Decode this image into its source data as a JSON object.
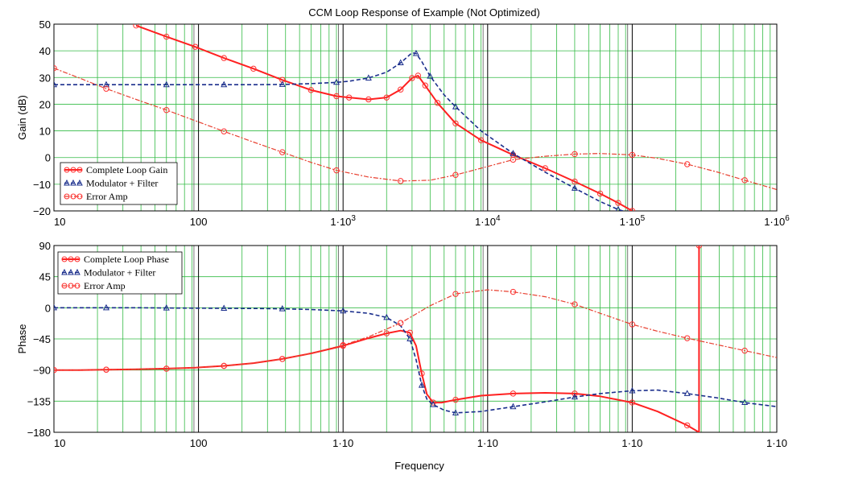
{
  "title": "CCM Loop Response of Example (Not Optimized)",
  "xlabel": "Frequency",
  "colors": {
    "complete": "#ff2020",
    "modulator": "#1a2e8c",
    "error": "#e84030",
    "grid": "#33bb44",
    "decade": "#000000",
    "marker": "#ff3030",
    "modmarker": "#1a2e8c"
  },
  "chart_data": [
    {
      "type": "line",
      "ylabel": "Gain (dB)",
      "xscale": "log",
      "xlim": [
        10,
        1000000
      ],
      "ylim": [
        -20,
        50
      ],
      "yticks": [
        50,
        40,
        30,
        20,
        10,
        0,
        -10,
        -20
      ],
      "ytick_labels": [
        "50",
        "40",
        "30",
        "20",
        "10",
        "0",
        "−10",
        "−20"
      ],
      "xtick_labels": [
        {
          "x": 10,
          "label": "10"
        },
        {
          "x": 100,
          "label": "100"
        },
        {
          "x": 1000,
          "label": "1·10^3"
        },
        {
          "x": 10000,
          "label": "1·10^4"
        },
        {
          "x": 100000,
          "label": "1·10^5"
        },
        {
          "x": 1000000,
          "label": "1·10^6"
        }
      ],
      "legend": "bottom-left",
      "series": [
        {
          "name": "Complete Loop Gain",
          "marker": "circle",
          "style": "solid",
          "x": [
            37,
            60,
            95,
            150,
            240,
            380,
            600,
            900,
            1100,
            1500,
            2000,
            2500,
            3000,
            3300,
            3700,
            4500,
            6000,
            9000,
            15000,
            25000,
            40000,
            60000,
            80000,
            100000
          ],
          "y": [
            49.5,
            45.3,
            41.5,
            37.3,
            33.3,
            29.1,
            25.3,
            23.0,
            22.5,
            21.8,
            22.5,
            25.5,
            29.8,
            30.7,
            27.0,
            20.5,
            12.8,
            6.5,
            1.0,
            -4.0,
            -9.0,
            -13.5,
            -17.0,
            -20.0
          ]
        },
        {
          "name": "Modulator + Filter",
          "marker": "triangle",
          "style": "dashed",
          "x": [
            10,
            15,
            23,
            37,
            60,
            95,
            150,
            240,
            380,
            600,
            900,
            1100,
            1500,
            2000,
            2500,
            3000,
            3200,
            3500,
            4000,
            5000,
            6000,
            9000,
            15000,
            25000,
            40000,
            60000,
            80000,
            100000
          ],
          "y": [
            27.3,
            27.3,
            27.3,
            27.3,
            27.3,
            27.3,
            27.3,
            27.3,
            27.4,
            27.7,
            28.2,
            28.6,
            29.8,
            32.0,
            35.5,
            39.3,
            39.0,
            36.0,
            30.5,
            23.5,
            19.0,
            10.0,
            1.5,
            -5.5,
            -11.5,
            -16.5,
            -19.5,
            -21.0
          ]
        },
        {
          "name": "Error Amp",
          "marker": "circle",
          "style": "dashdot",
          "x": [
            10,
            15,
            23,
            37,
            60,
            95,
            150,
            240,
            380,
            600,
            900,
            1500,
            2500,
            4000,
            6000,
            9000,
            15000,
            25000,
            40000,
            60000,
            100000,
            150000,
            240000,
            380000,
            600000,
            1000000
          ],
          "y": [
            33.5,
            29.8,
            25.8,
            21.8,
            17.8,
            13.8,
            9.8,
            5.8,
            2.0,
            -1.8,
            -4.8,
            -7.3,
            -8.8,
            -8.5,
            -6.5,
            -4.0,
            -0.8,
            0.5,
            1.3,
            1.5,
            1.0,
            -0.3,
            -2.5,
            -5.3,
            -8.5,
            -12.0
          ]
        }
      ]
    },
    {
      "type": "line",
      "ylabel": "Phase",
      "xscale": "log",
      "xlim": [
        10,
        1000000
      ],
      "ylim": [
        -180,
        90
      ],
      "yticks": [
        90,
        45,
        0,
        -45,
        -90,
        -135,
        -180
      ],
      "ytick_labels": [
        "90",
        "45",
        "0",
        "−45",
        "−90",
        "−135",
        "−180"
      ],
      "xtick_labels": [
        {
          "x": 10,
          "label": "10"
        },
        {
          "x": 100,
          "label": "100"
        },
        {
          "x": 1000,
          "label": "1·10"
        },
        {
          "x": 10000,
          "label": "1·10"
        },
        {
          "x": 100000,
          "label": "1·10"
        },
        {
          "x": 1000000,
          "label": "1·10"
        }
      ],
      "legend": "top-left",
      "series": [
        {
          "name": "Complete Loop Phase",
          "marker": "circle",
          "style": "solid",
          "x": [
            10,
            15,
            23,
            37,
            60,
            95,
            150,
            240,
            380,
            600,
            1000,
            1500,
            2000,
            2500,
            2900,
            3200,
            3500,
            3800,
            4200,
            4800,
            6000,
            9000,
            15000,
            25000,
            40000,
            60000,
            100000,
            150000,
            240000,
            290000,
            290000,
            292000
          ],
          "y": [
            -90,
            -90,
            -89.5,
            -89,
            -88,
            -86.5,
            -84,
            -80,
            -74,
            -66,
            -55,
            -44,
            -37,
            -33,
            -36,
            -55,
            -95,
            -125,
            -137,
            -137,
            -133,
            -127,
            -124,
            -123,
            -124,
            -128,
            -137,
            -150,
            -170,
            -180,
            90,
            90
          ]
        },
        {
          "name": "Modulator + Filter",
          "marker": "triangle",
          "style": "dashed",
          "x": [
            10,
            15,
            23,
            37,
            60,
            95,
            150,
            240,
            380,
            600,
            1000,
            1500,
            2000,
            2500,
            2900,
            3200,
            3500,
            3800,
            4200,
            5000,
            6000,
            9000,
            15000,
            25000,
            40000,
            60000,
            100000,
            150000,
            240000,
            380000,
            600000,
            1000000
          ],
          "y": [
            0,
            0,
            0,
            0,
            -0.3,
            -0.5,
            -0.8,
            -1,
            -1.5,
            -2.5,
            -4.5,
            -8,
            -14,
            -26,
            -45,
            -75,
            -112,
            -132,
            -140,
            -148,
            -152,
            -150,
            -143,
            -136,
            -129,
            -124,
            -120,
            -119,
            -124,
            -130,
            -137,
            -143
          ]
        },
        {
          "name": "Error Amp",
          "marker": "circle",
          "style": "dashdot",
          "x": [
            10,
            15,
            23,
            37,
            60,
            95,
            150,
            240,
            380,
            600,
            1000,
            1500,
            2500,
            4000,
            6000,
            10000,
            15000,
            25000,
            40000,
            60000,
            100000,
            150000,
            240000,
            380000,
            600000,
            1000000
          ],
          "y": [
            -90,
            -90,
            -89.5,
            -89,
            -88,
            -86.5,
            -84,
            -80,
            -74,
            -66,
            -54,
            -42,
            -22,
            3,
            20,
            26,
            23,
            16,
            5,
            -8,
            -24,
            -34,
            -44,
            -53,
            -62,
            -72
          ]
        }
      ]
    }
  ]
}
